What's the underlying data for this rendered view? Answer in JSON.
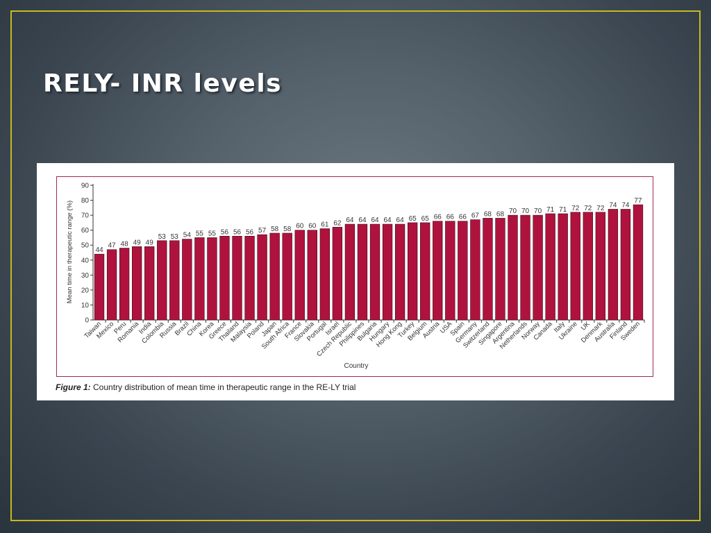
{
  "slide": {
    "title": "RELY- INR levels"
  },
  "figure": {
    "caption_label": "Figure 1:",
    "caption_text": "Country distribution of mean time in therapeutic range in the RE-LY trial"
  },
  "colors": {
    "bar": "#b0123e",
    "frame": "#c8b820",
    "figure_border": "#a0294c"
  },
  "chart_data": {
    "type": "bar",
    "xlabel": "Country",
    "ylabel": "Mean time in therapeutic range (%)",
    "ylim": [
      0,
      90
    ],
    "yticks": [
      0,
      10,
      20,
      30,
      40,
      50,
      60,
      70,
      80,
      90
    ],
    "grid": false,
    "categories": [
      "Taiwan",
      "Mexico",
      "Peru",
      "Romania",
      "India",
      "Colombia",
      "Russia",
      "Brazil",
      "China",
      "Korea",
      "Greece",
      "Thailand",
      "Malaysia",
      "Poland",
      "Japan",
      "South Africa",
      "France",
      "Slovakia",
      "Portugal",
      "Israel",
      "Czech Republic",
      "Philippines",
      "Bulgaria",
      "Hungary",
      "Hong Kong",
      "Turkey",
      "Belgium",
      "Austria",
      "USA",
      "Spain",
      "Germany",
      "Switzerland",
      "Singapore",
      "Argentina",
      "Netherlands",
      "Norway",
      "Canada",
      "Italy",
      "Ukraine",
      "UK",
      "Denmark",
      "Australia",
      "Finland",
      "Sweden"
    ],
    "values": [
      44,
      47,
      48,
      49,
      49,
      53,
      53,
      54,
      55,
      55,
      56,
      56,
      56,
      57,
      58,
      58,
      60,
      60,
      61,
      62,
      64,
      64,
      64,
      64,
      64,
      65,
      65,
      66,
      66,
      66,
      67,
      68,
      68,
      70,
      70,
      70,
      71,
      71,
      72,
      72,
      72,
      74,
      74,
      77
    ]
  }
}
